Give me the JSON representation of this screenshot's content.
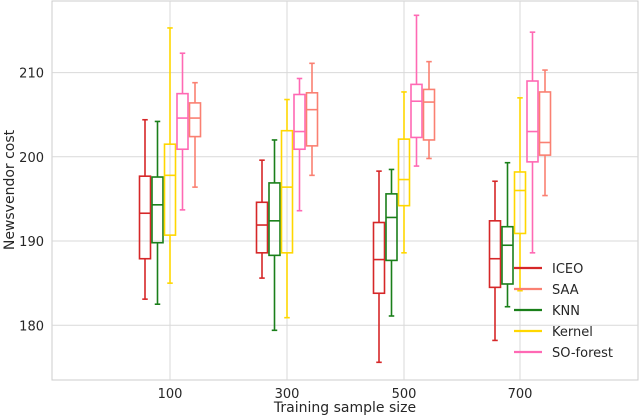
{
  "chart_data": {
    "type": "box",
    "xlabel": "Training sample size",
    "ylabel": "Newsvendor cost",
    "categories": [
      "100",
      "300",
      "500",
      "700"
    ],
    "yticks": [
      180,
      190,
      200,
      210
    ],
    "ylim": [
      173.5,
      218.5
    ],
    "grid": true,
    "legend_position": "bottom-right",
    "series": [
      {
        "name": "ICEO",
        "color": "#d62728",
        "boxes": [
          {
            "whislo": 183.1,
            "q1": 187.9,
            "med": 193.3,
            "q3": 197.7,
            "whishi": 204.4
          },
          {
            "whislo": 185.6,
            "q1": 188.6,
            "med": 191.9,
            "q3": 194.6,
            "whishi": 199.6
          },
          {
            "whislo": 175.6,
            "q1": 183.8,
            "med": 187.8,
            "q3": 192.2,
            "whishi": 198.3
          },
          {
            "whislo": 178.2,
            "q1": 184.5,
            "med": 187.9,
            "q3": 192.4,
            "whishi": 197.1
          }
        ]
      },
      {
        "name": "SAA",
        "color": "#fa8072",
        "boxes": [
          {
            "whislo": 196.4,
            "q1": 202.4,
            "med": 204.6,
            "q3": 206.4,
            "whishi": 208.8
          },
          {
            "whislo": 197.8,
            "q1": 201.3,
            "med": 205.6,
            "q3": 207.6,
            "whishi": 211.1
          },
          {
            "whislo": 199.8,
            "q1": 202.0,
            "med": 206.5,
            "q3": 208.0,
            "whishi": 211.3
          },
          {
            "whislo": 195.4,
            "q1": 200.2,
            "med": 201.7,
            "q3": 207.7,
            "whishi": 210.3
          }
        ]
      },
      {
        "name": "KNN",
        "color": "#1a7f1a",
        "boxes": [
          {
            "whislo": 182.5,
            "q1": 189.8,
            "med": 194.3,
            "q3": 197.6,
            "whishi": 204.2
          },
          {
            "whislo": 179.4,
            "q1": 188.3,
            "med": 192.4,
            "q3": 196.9,
            "whishi": 202.0
          },
          {
            "whislo": 181.1,
            "q1": 187.7,
            "med": 192.8,
            "q3": 195.6,
            "whishi": 198.5
          },
          {
            "whislo": 182.2,
            "q1": 184.9,
            "med": 189.5,
            "q3": 191.7,
            "whishi": 199.3
          }
        ]
      },
      {
        "name": "Kernel",
        "color": "#ffd700",
        "boxes": [
          {
            "whislo": 185.0,
            "q1": 190.7,
            "med": 197.8,
            "q3": 201.5,
            "whishi": 215.3
          },
          {
            "whislo": 180.9,
            "q1": 188.6,
            "med": 196.4,
            "q3": 203.1,
            "whishi": 206.8
          },
          {
            "whislo": 188.6,
            "q1": 194.2,
            "med": 197.3,
            "q3": 202.1,
            "whishi": 207.7
          },
          {
            "whislo": 184.1,
            "q1": 190.9,
            "med": 196.0,
            "q3": 198.2,
            "whishi": 207.0
          }
        ]
      },
      {
        "name": "SO-forest",
        "color": "#ff69b4",
        "boxes": [
          {
            "whislo": 193.7,
            "q1": 200.9,
            "med": 204.6,
            "q3": 207.5,
            "whishi": 212.3
          },
          {
            "whislo": 193.6,
            "q1": 200.9,
            "med": 203.0,
            "q3": 207.4,
            "whishi": 209.3
          },
          {
            "whislo": 198.9,
            "q1": 202.3,
            "med": 206.6,
            "q3": 208.6,
            "whishi": 216.8
          },
          {
            "whislo": 188.6,
            "q1": 199.4,
            "med": 203.0,
            "q3": 209.0,
            "whishi": 214.8
          }
        ]
      }
    ]
  }
}
